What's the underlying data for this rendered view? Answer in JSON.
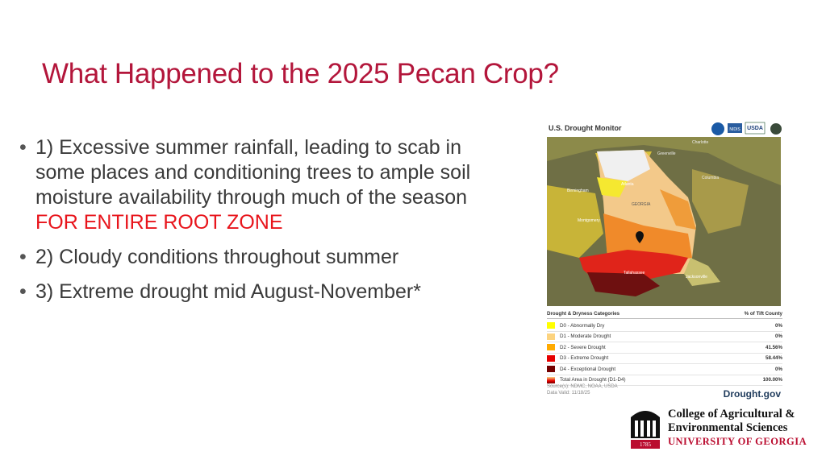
{
  "title": "What Happened to the 2025 Pecan Crop?",
  "bullets": [
    {
      "text": "1) Excessive summer rainfall, leading to scab in some places and conditioning trees to ample soil moisture availability through much of the season",
      "emphasis": "FOR ENTIRE ROOT ZONE"
    },
    {
      "text": "2) Cloudy conditions throughout summer"
    },
    {
      "text": "3) Extreme drought mid August-November*"
    }
  ],
  "drought_monitor": {
    "title": "U.S. Drought Monitor",
    "logos": [
      "NIDIS",
      "USDA"
    ],
    "map_labels": [
      "Charlotte",
      "Greenville",
      "Columbia",
      "Atlanta",
      "Birmingham",
      "Montgomery",
      "GEORGIA",
      "Tallahassee",
      "Jacksonville"
    ],
    "legend_header": "Drought & Dryness Categories",
    "legend_value_header": "% of Tift County",
    "legend_rows": [
      {
        "label": "D0 - Abnormally Dry",
        "value": "0%"
      },
      {
        "label": "D1 - Moderate Drought",
        "value": "0%"
      },
      {
        "label": "D2 - Severe Drought",
        "value": "41.56%"
      },
      {
        "label": "D3 - Extreme Drought",
        "value": "58.44%"
      },
      {
        "label": "D4 - Exceptional Drought",
        "value": "0%"
      },
      {
        "label": "Total Area in Drought (D1-D4)",
        "value": "100.00%"
      }
    ],
    "source": "Source(s): NDMC, NOAA, USDA",
    "data_valid": "Data Valid: 11/18/25",
    "site": "Drought.gov"
  },
  "footer": {
    "lines": [
      "College of Agricultural &",
      "Environmental Sciences",
      "UNIVERSITY OF GEORGIA"
    ],
    "seal_year": "1785"
  }
}
